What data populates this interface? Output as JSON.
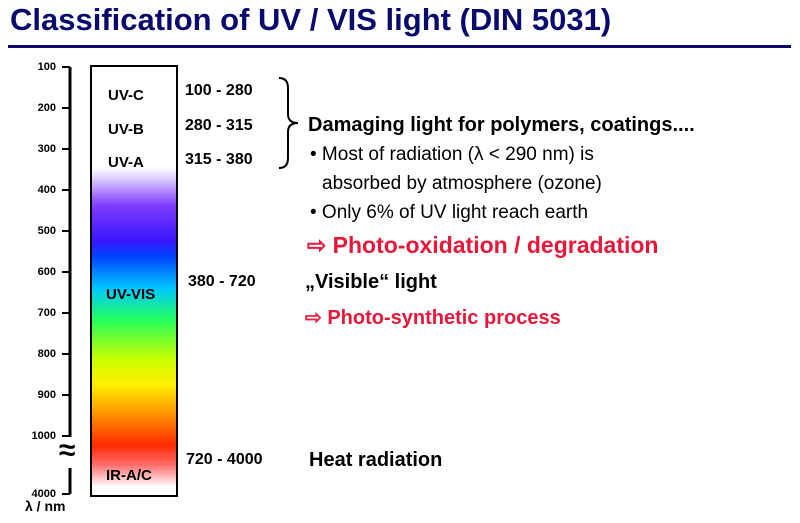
{
  "title": "Classification of UV / VIS light (DIN 5031)",
  "axis": {
    "ticks": [
      "100",
      "200",
      "300",
      "400",
      "500",
      "600",
      "700",
      "800",
      "900",
      "1000",
      "4000"
    ],
    "break_symbol": "≈",
    "unit": "λ / nm"
  },
  "bands": {
    "uvc": {
      "label": "UV-C",
      "range": "100 - 280"
    },
    "uvb": {
      "label": "UV-B",
      "range": "280 - 315"
    },
    "uva": {
      "label": "UV-A",
      "range": "315 - 380"
    },
    "vis": {
      "label": "UV-VIS",
      "range": "380 - 720"
    },
    "ir": {
      "label": "IR-A/C",
      "range": "720 - 4000"
    }
  },
  "uv_info": {
    "heading": "Damaging light for polymers, coatings....",
    "bullet1_line1": "• Most of radiation (λ < 290 nm) is",
    "bullet1_line2": "absorbed by atmosphere (ozone)",
    "bullet2": "• Only 6% of UV light reach earth",
    "consequence": "⇨ Photo-oxidation / degradation"
  },
  "vis_info": {
    "heading": "„Visible“ light",
    "consequence": "⇨ Photo-synthetic process"
  },
  "ir_info": {
    "heading": "Heat radiation"
  },
  "colors": {
    "title": "#0a0a6e",
    "accent": "#e8173a"
  }
}
